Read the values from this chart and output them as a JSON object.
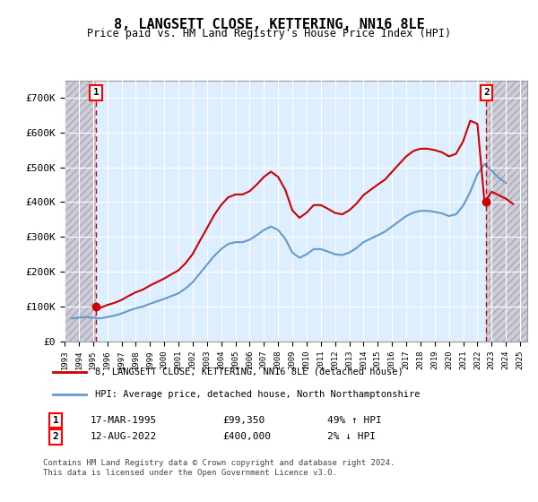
{
  "title": "8, LANGSETT CLOSE, KETTERING, NN16 8LE",
  "subtitle": "Price paid vs. HM Land Registry's House Price Index (HPI)",
  "ylabel": "",
  "ylim": [
    0,
    750000
  ],
  "yticks": [
    0,
    100000,
    200000,
    300000,
    400000,
    500000,
    600000,
    700000
  ],
  "ytick_labels": [
    "£0",
    "£100K",
    "£200K",
    "£300K",
    "£400K",
    "£500K",
    "£600K",
    "£700K"
  ],
  "xlim_start": 1993.0,
  "xlim_end": 2025.5,
  "xtick_years": [
    1993,
    1994,
    1995,
    1996,
    1997,
    1998,
    1999,
    2000,
    2001,
    2002,
    2003,
    2004,
    2005,
    2006,
    2007,
    2008,
    2009,
    2010,
    2011,
    2012,
    2013,
    2014,
    2015,
    2016,
    2017,
    2018,
    2019,
    2020,
    2021,
    2022,
    2023,
    2024,
    2025
  ],
  "sale1_date": 1995.21,
  "sale1_price": 99350,
  "sale1_label": "1",
  "sale2_date": 2022.62,
  "sale2_price": 400000,
  "sale2_label": "2",
  "red_line_color": "#cc0000",
  "blue_line_color": "#6699cc",
  "background_color": "#ffffff",
  "plot_bg_color": "#ddeeff",
  "hatch_color": "#bbbbcc",
  "grid_color": "#ffffff",
  "legend_label_red": "8, LANGSETT CLOSE, KETTERING, NN16 8LE (detached house)",
  "legend_label_blue": "HPI: Average price, detached house, North Northamptonshire",
  "annotation1": "1   17-MAR-1995        £99,350        49% ↑ HPI",
  "annotation2": "2   12-AUG-2022        £400,000        2% ↓ HPI",
  "footer": "Contains HM Land Registry data © Crown copyright and database right 2024.\nThis data is licensed under the Open Government Licence v3.0.",
  "hpi_data": {
    "years": [
      1993.5,
      1994.0,
      1994.5,
      1995.0,
      1995.5,
      1996.0,
      1996.5,
      1997.0,
      1997.5,
      1998.0,
      1998.5,
      1999.0,
      1999.5,
      2000.0,
      2000.5,
      2001.0,
      2001.5,
      2002.0,
      2002.5,
      2003.0,
      2003.5,
      2004.0,
      2004.5,
      2005.0,
      2005.5,
      2006.0,
      2006.5,
      2007.0,
      2007.5,
      2008.0,
      2008.5,
      2009.0,
      2009.5,
      2010.0,
      2010.5,
      2011.0,
      2011.5,
      2012.0,
      2012.5,
      2013.0,
      2013.5,
      2014.0,
      2014.5,
      2015.0,
      2015.5,
      2016.0,
      2016.5,
      2017.0,
      2017.5,
      2018.0,
      2018.5,
      2019.0,
      2019.5,
      2020.0,
      2020.5,
      2021.0,
      2021.5,
      2022.0,
      2022.5,
      2023.0,
      2023.5,
      2024.0
    ],
    "values": [
      66000,
      68000,
      70000,
      68000,
      66000,
      70000,
      74000,
      80000,
      88000,
      95000,
      100000,
      108000,
      115000,
      122000,
      130000,
      138000,
      152000,
      170000,
      195000,
      220000,
      245000,
      265000,
      280000,
      285000,
      285000,
      292000,
      305000,
      320000,
      330000,
      320000,
      295000,
      255000,
      240000,
      250000,
      265000,
      265000,
      258000,
      250000,
      248000,
      255000,
      268000,
      285000,
      295000,
      305000,
      315000,
      330000,
      345000,
      360000,
      370000,
      375000,
      375000,
      372000,
      368000,
      360000,
      365000,
      390000,
      430000,
      480000,
      510000,
      490000,
      470000,
      455000
    ]
  },
  "price_line_data": {
    "years": [
      1995.21,
      1995.5,
      1996.0,
      1996.5,
      1997.0,
      1997.5,
      1998.0,
      1998.5,
      1999.0,
      1999.5,
      2000.0,
      2000.5,
      2001.0,
      2001.5,
      2002.0,
      2002.5,
      2003.0,
      2003.5,
      2004.0,
      2004.5,
      2005.0,
      2005.5,
      2006.0,
      2006.5,
      2007.0,
      2007.5,
      2008.0,
      2008.5,
      2009.0,
      2009.5,
      2010.0,
      2010.5,
      2011.0,
      2011.5,
      2012.0,
      2012.5,
      2013.0,
      2013.5,
      2014.0,
      2014.5,
      2015.0,
      2015.5,
      2016.0,
      2016.5,
      2017.0,
      2017.5,
      2018.0,
      2018.5,
      2019.0,
      2019.5,
      2020.0,
      2020.5,
      2021.0,
      2021.5,
      2022.0,
      2022.5,
      2023.0,
      2023.5,
      2024.0,
      2024.5
    ],
    "values": [
      99350,
      96000,
      104500,
      110500,
      119000,
      130500,
      141000,
      148500,
      160500,
      170500,
      180500,
      192500,
      204000,
      224500,
      251000,
      288500,
      325000,
      362000,
      392000,
      414000,
      422000,
      422000,
      431500,
      450500,
      472500,
      487500,
      472500,
      436000,
      376500,
      355000,
      369500,
      391500,
      391500,
      381000,
      369000,
      365000,
      376500,
      395500,
      420500,
      435500,
      450500,
      464500,
      487000,
      509500,
      531500,
      547000,
      553500,
      553500,
      549500,
      543500,
      531500,
      539000,
      575000,
      634000,
      625000,
      400000,
      430000,
      420000,
      410000,
      395000
    ]
  }
}
